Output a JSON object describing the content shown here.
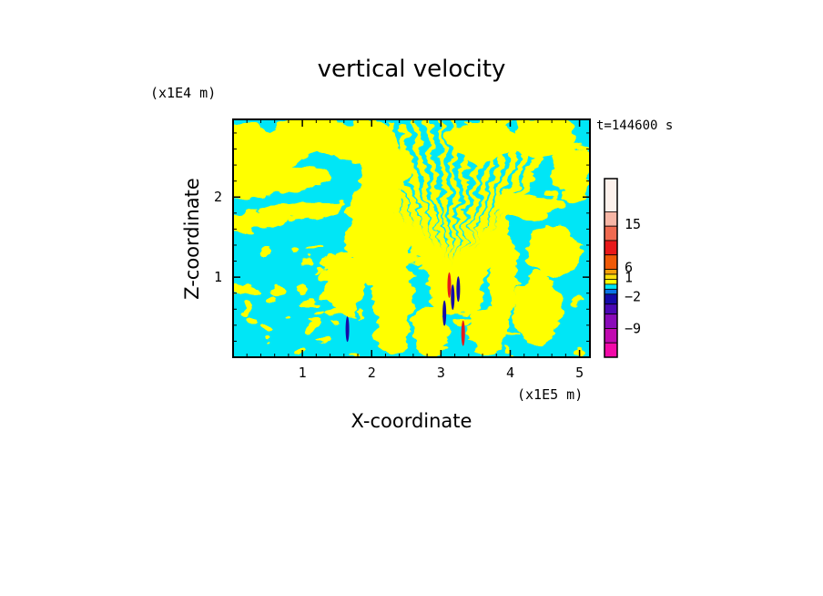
{
  "chart_data": {
    "type": "heatmap",
    "title": "vertical velocity",
    "xlabel": "X-coordinate",
    "ylabel": "Z-coordinate",
    "x_scale_note": "(x1E5 m)",
    "y_scale_note": "(x1E4 m)",
    "time_label": "t=144600 s",
    "xlim": [
      0,
      5.15
    ],
    "ylim": [
      0,
      2.97
    ],
    "x_ticks": [
      "1",
      "2",
      "3",
      "4",
      "5"
    ],
    "y_ticks": [
      "1",
      "2"
    ],
    "x_tick_values": [
      1,
      2,
      3,
      4,
      5
    ],
    "y_tick_values": [
      1,
      2
    ],
    "grid": false,
    "legend_position": "right",
    "colorbar": {
      "tick_labels": [
        "15",
        "6",
        "1",
        "−2",
        "−9"
      ],
      "levels_top_to_bottom": [
        {
          "color": "#fdf1ec"
        },
        {
          "color": "#f7b6a6"
        },
        {
          "color": "#f06a50"
        },
        {
          "color": "#e8191a"
        },
        {
          "color": "#f05a08"
        },
        {
          "color": "#f6a10a"
        },
        {
          "color": "#fde009"
        },
        {
          "color": "#ffff00"
        },
        {
          "color": "#00e6f6"
        },
        {
          "color": "#0b74e6"
        },
        {
          "color": "#150aa8"
        },
        {
          "color": "#4b08b4"
        },
        {
          "color": "#8a0bb9"
        },
        {
          "color": "#c10ab0"
        },
        {
          "color": "#f20aa8"
        }
      ]
    },
    "field_colors": {
      "negative_small": "#00e6f6",
      "positive_small": "#ffff00",
      "strong_positive": "#e8191a",
      "strong_negative": "#150aa8"
    }
  }
}
